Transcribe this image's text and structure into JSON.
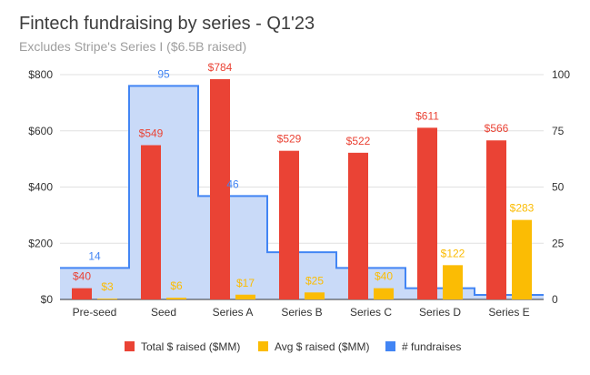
{
  "chart_data": {
    "type": "bar",
    "title": "Fintech fundraising by series - Q1'23",
    "subtitle": "Excludes Stripe's Series I ($6.5B raised)",
    "categories": [
      "Pre-seed",
      "Seed",
      "Series A",
      "Series B",
      "Series C",
      "Series D",
      "Series E"
    ],
    "series": [
      {
        "name": "Total $ raised ($MM)",
        "type": "bar",
        "axis": "left",
        "color": "#ea4335",
        "values": [
          40,
          549,
          784,
          529,
          522,
          611,
          566
        ],
        "labels": [
          "$40",
          "$549",
          "$784",
          "$529",
          "$522",
          "$611",
          "$566"
        ]
      },
      {
        "name": "Avg $ raised ($MM)",
        "type": "bar",
        "axis": "left",
        "color": "#fbbc04",
        "values": [
          3,
          6,
          17,
          25,
          40,
          122,
          283
        ],
        "labels": [
          "$3",
          "$6",
          "$17",
          "$25",
          "$40",
          "$122",
          "$283"
        ]
      },
      {
        "name": "# fundraises",
        "type": "stepped-area",
        "axis": "right",
        "color": "#4285f4",
        "fill": "#c9daf8",
        "values": [
          14,
          95,
          46,
          21,
          14,
          5,
          2
        ],
        "labels": [
          "14",
          "95",
          "46",
          "",
          "",
          "",
          ""
        ]
      }
    ],
    "y_left": {
      "min": 0,
      "max": 800,
      "ticks": [
        "$0",
        "$200",
        "$400",
        "$600",
        "$800"
      ],
      "tick_values": [
        0,
        200,
        400,
        600,
        800
      ]
    },
    "y_right": {
      "min": 0,
      "max": 100,
      "ticks": [
        "0",
        "25",
        "50",
        "75",
        "100"
      ],
      "tick_values": [
        0,
        25,
        50,
        75,
        100
      ]
    },
    "grid": true,
    "legend_position": "bottom"
  }
}
